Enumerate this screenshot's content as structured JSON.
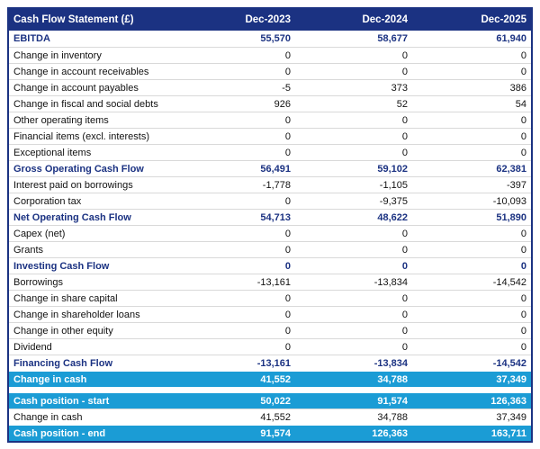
{
  "table": {
    "title": "Cash Flow Statement (£)",
    "columns": [
      "Dec-2023",
      "Dec-2024",
      "Dec-2025"
    ],
    "rows": [
      {
        "label": "EBITDA",
        "values": [
          "55,570",
          "58,677",
          "61,940"
        ],
        "style": "total"
      },
      {
        "label": "Change in inventory",
        "values": [
          "0",
          "0",
          "0"
        ],
        "style": "normal"
      },
      {
        "label": "Change in account receivables",
        "values": [
          "0",
          "0",
          "0"
        ],
        "style": "normal"
      },
      {
        "label": "Change in account payables",
        "values": [
          "-5",
          "373",
          "386"
        ],
        "style": "normal"
      },
      {
        "label": "Change in fiscal and social debts",
        "values": [
          "926",
          "52",
          "54"
        ],
        "style": "normal"
      },
      {
        "label": "Other operating items",
        "values": [
          "0",
          "0",
          "0"
        ],
        "style": "normal"
      },
      {
        "label": "Financial items (excl. interests)",
        "values": [
          "0",
          "0",
          "0"
        ],
        "style": "normal"
      },
      {
        "label": "Exceptional items",
        "values": [
          "0",
          "0",
          "0"
        ],
        "style": "normal"
      },
      {
        "label": "Gross Operating Cash Flow",
        "values": [
          "56,491",
          "59,102",
          "62,381"
        ],
        "style": "total"
      },
      {
        "label": "Interest paid on borrowings",
        "values": [
          "-1,778",
          "-1,105",
          "-397"
        ],
        "style": "normal"
      },
      {
        "label": "Corporation tax",
        "values": [
          "0",
          "-9,375",
          "-10,093"
        ],
        "style": "normal"
      },
      {
        "label": "Net Operating Cash Flow",
        "values": [
          "54,713",
          "48,622",
          "51,890"
        ],
        "style": "total"
      },
      {
        "label": "Capex (net)",
        "values": [
          "0",
          "0",
          "0"
        ],
        "style": "normal"
      },
      {
        "label": "Grants",
        "values": [
          "0",
          "0",
          "0"
        ],
        "style": "normal"
      },
      {
        "label": "Investing Cash Flow",
        "values": [
          "0",
          "0",
          "0"
        ],
        "style": "total"
      },
      {
        "label": "Borrowings",
        "values": [
          "-13,161",
          "-13,834",
          "-14,542"
        ],
        "style": "normal"
      },
      {
        "label": "Change in share capital",
        "values": [
          "0",
          "0",
          "0"
        ],
        "style": "normal"
      },
      {
        "label": "Change in shareholder loans",
        "values": [
          "0",
          "0",
          "0"
        ],
        "style": "normal"
      },
      {
        "label": "Change in other equity",
        "values": [
          "0",
          "0",
          "0"
        ],
        "style": "normal"
      },
      {
        "label": "Dividend",
        "values": [
          "0",
          "0",
          "0"
        ],
        "style": "normal"
      },
      {
        "label": "Financing Cash Flow",
        "values": [
          "-13,161",
          "-13,834",
          "-14,542"
        ],
        "style": "total"
      },
      {
        "label": "Change in cash",
        "values": [
          "41,552",
          "34,788",
          "37,349"
        ],
        "style": "highlight"
      }
    ],
    "summary_rows": [
      {
        "label": "Cash position - start",
        "values": [
          "50,022",
          "91,574",
          "126,363"
        ],
        "style": "highlight"
      },
      {
        "label": "Change in cash",
        "values": [
          "41,552",
          "34,788",
          "37,349"
        ],
        "style": "normal"
      },
      {
        "label": "Cash position - end",
        "values": [
          "91,574",
          "126,363",
          "163,711"
        ],
        "style": "highlight"
      }
    ],
    "colors": {
      "header_bg": "#1b3282",
      "total_text": "#1b3282",
      "highlight_bg": "#1b9cd5",
      "row_separator": "#d9d9d9",
      "body_text": "#111111"
    }
  }
}
